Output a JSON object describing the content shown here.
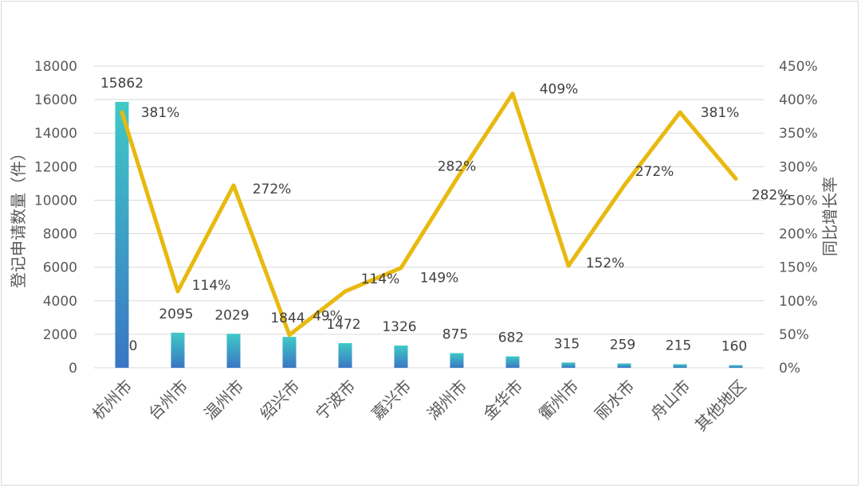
{
  "chart_data": {
    "type": "bar+line",
    "categories": [
      "杭州市",
      "台州市",
      "温州市",
      "绍兴市",
      "宁波市",
      "嘉兴市",
      "湖州市",
      "金华市",
      "衢州市",
      "丽水市",
      "舟山市",
      "其他地区"
    ],
    "series": [
      {
        "type": "bar",
        "axis": "left",
        "values": [
          15862,
          2095,
          2029,
          1844,
          1472,
          1326,
          875,
          682,
          315,
          259,
          215,
          160
        ],
        "labels": [
          "15862",
          "2095",
          "2029",
          "1844",
          "1472",
          "1326",
          "875",
          "682",
          "315",
          "259",
          "215",
          "160"
        ]
      },
      {
        "type": "line",
        "axis": "right",
        "values": [
          381,
          114,
          272,
          49,
          114,
          149,
          282,
          409,
          152,
          272,
          381,
          282
        ],
        "labels": [
          "381%",
          "114%",
          "272%",
          "49%",
          "114%",
          "149%",
          "282%",
          "409%",
          "152%",
          "272%",
          "381%",
          "282%"
        ],
        "color": "#e8b90f"
      }
    ],
    "extra_labels": [
      "0"
    ],
    "ylabel": "登记申请数量（件）",
    "y2label": "同比增长率",
    "ylim": [
      0,
      18000
    ],
    "y2lim": [
      0,
      450
    ],
    "yticks": [
      "0",
      "2000",
      "4000",
      "6000",
      "8000",
      "10000",
      "12000",
      "14000",
      "16000",
      "18000"
    ],
    "y2ticks": [
      "0%",
      "50%",
      "100%",
      "150%",
      "200%",
      "250%",
      "300%",
      "350%",
      "400%",
      "450%"
    ],
    "grid": true,
    "colors": {
      "bar_top": "#3fc9c6",
      "bar_bottom": "#3a76c4",
      "line": "#e8b90f",
      "grid": "#d9d9d9"
    }
  }
}
